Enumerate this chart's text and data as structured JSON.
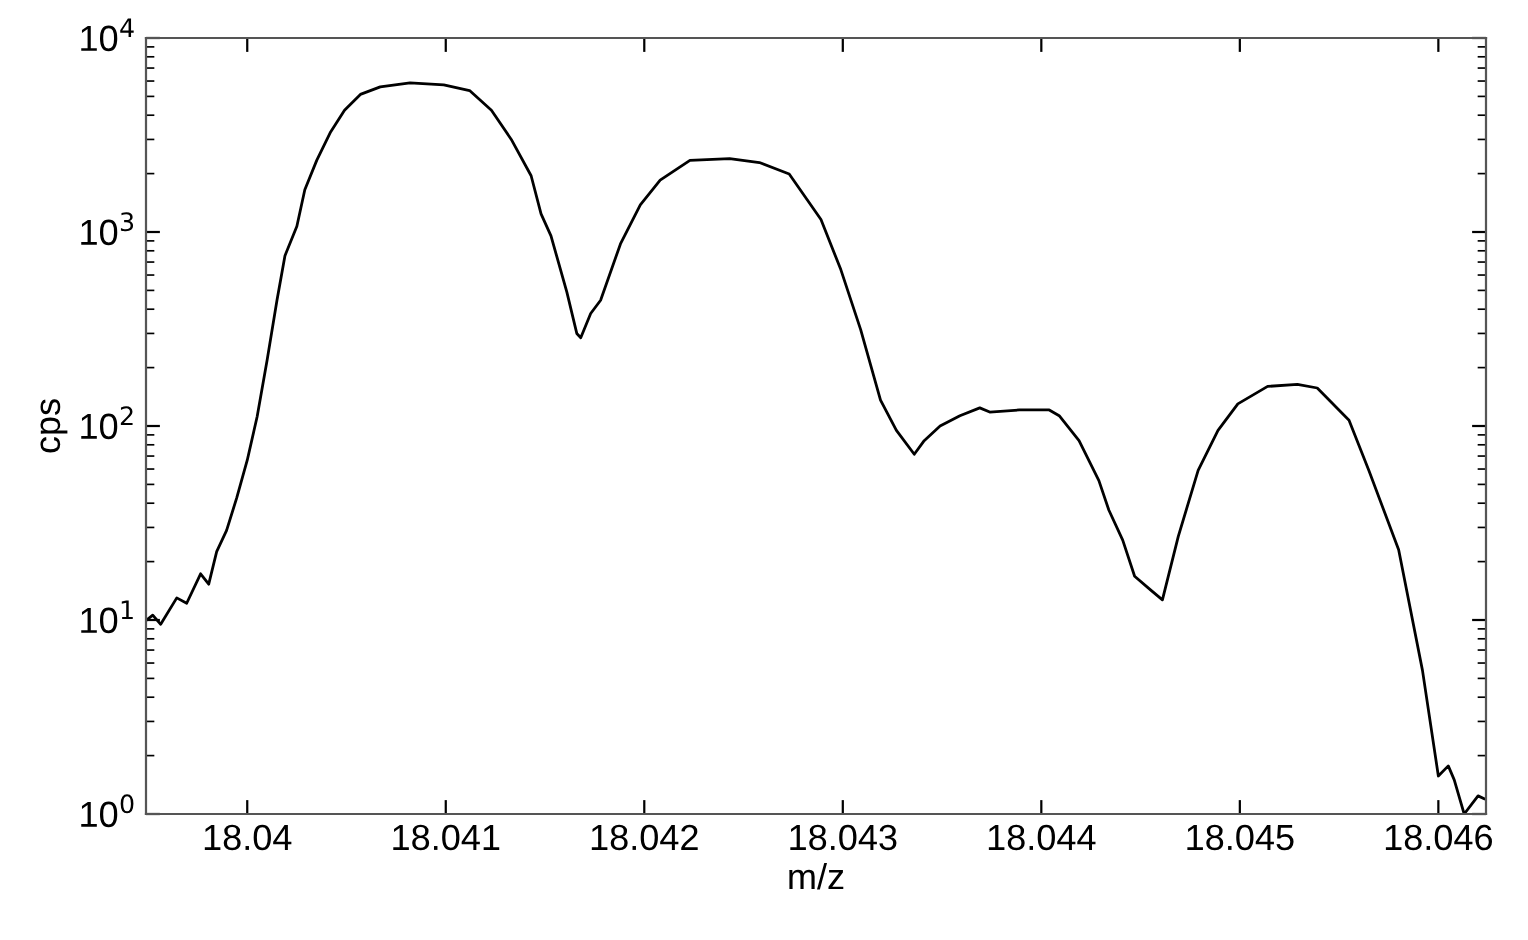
{
  "chart_data": {
    "type": "line",
    "xlabel": "m/z",
    "ylabel": "cps",
    "log": "y",
    "grid": false,
    "marker": "none",
    "line_style": "solid",
    "xlim": [
      18.03949,
      18.04624
    ],
    "ylim": [
      1,
      10000
    ],
    "xticks": [
      18.04,
      18.041,
      18.042,
      18.043,
      18.044,
      18.045,
      18.046
    ],
    "yticks": [
      {
        "value": 1,
        "label": "10$^{0}$"
      },
      {
        "value": 10,
        "label": "10$^{1}$"
      },
      {
        "value": 100,
        "label": "10$^{2}$"
      },
      {
        "value": 1000,
        "label": "10$^{3}$"
      },
      {
        "value": 10000,
        "label": "10$^{4}$"
      }
    ],
    "series": [
      {
        "color": "#000000",
        "x": [
          18.039493,
          18.039524,
          18.039564,
          18.039645,
          18.039695,
          18.039765,
          18.039806,
          18.039846,
          18.039896,
          18.039947,
          18.04,
          18.04005,
          18.0401,
          18.04015,
          18.04019,
          18.04025,
          18.04029,
          18.04035,
          18.04042,
          18.04049,
          18.04057,
          18.04067,
          18.04082,
          18.04099,
          18.04112,
          18.04123,
          18.04133,
          18.04143,
          18.04148,
          18.04153,
          18.04161,
          18.04166,
          18.04168,
          18.04173,
          18.04178,
          18.04188,
          18.04198,
          18.04208,
          18.04223,
          18.04243,
          18.04258,
          18.04273,
          18.04289,
          18.04299,
          18.04309,
          18.04319,
          18.04327,
          18.04336,
          18.04341,
          18.04349,
          18.04359,
          18.04369,
          18.04374,
          18.04389,
          18.04404,
          18.04409,
          18.04419,
          18.04429,
          18.04434,
          18.04441,
          18.04447,
          18.04455,
          18.04461,
          18.04469,
          18.04479,
          18.04489,
          18.04499,
          18.04514,
          18.04529,
          18.04539,
          18.04555,
          18.04565,
          18.0458,
          18.04592,
          18.046,
          18.04605,
          18.04608,
          18.04613,
          18.0462,
          18.04623
        ],
        "values": [
          10,
          10.6,
          9.5,
          13,
          12.2,
          17.3,
          15.3,
          22.5,
          29,
          42.6,
          66.6,
          112,
          218,
          446,
          755,
          1070,
          1650,
          2340,
          3280,
          4240,
          5120,
          5600,
          5870,
          5740,
          5360,
          4240,
          3000,
          1950,
          1240,
          955,
          490,
          300,
          285,
          380,
          445,
          868,
          1380,
          1850,
          2340,
          2390,
          2280,
          1990,
          1160,
          640,
          314,
          136,
          95,
          71.5,
          84,
          100,
          113,
          124,
          118,
          121,
          121,
          113,
          84,
          52.3,
          36.9,
          25.8,
          16.8,
          14.3,
          12.7,
          27,
          59,
          95,
          130,
          160,
          164,
          157,
          107,
          59,
          23,
          5.5,
          1.57,
          1.77,
          1.5,
          1.0,
          1.24,
          1.2
        ]
      }
    ]
  }
}
